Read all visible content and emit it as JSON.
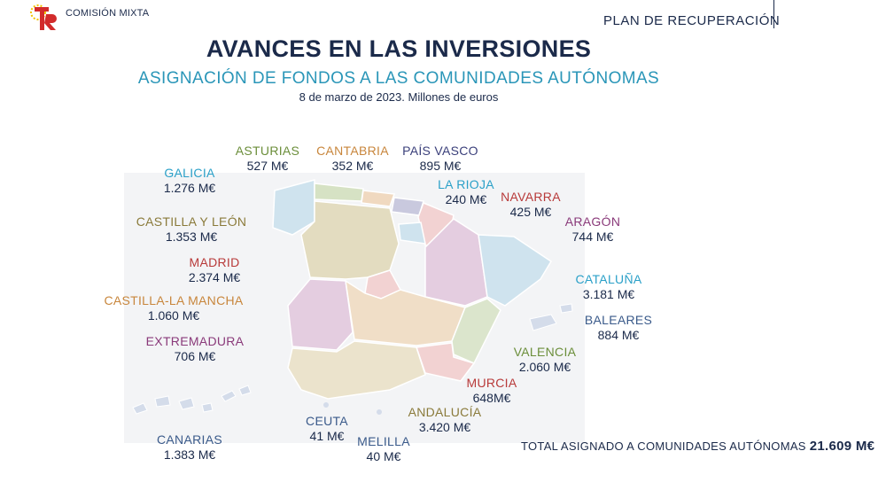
{
  "header": {
    "org": "COMISIÓN MIXTA",
    "plan": "PLAN DE RECUPERACIÓN"
  },
  "title": "AVANCES EN LAS INVERSIONES",
  "subtitle": "ASIGNACIÓN DE FONDOS A LAS COMUNIDADES AUTÓNOMAS",
  "date": "8 de marzo de 2023. Millones de euros",
  "regions": {
    "asturias": {
      "name": "ASTURIAS",
      "value": "527 M€",
      "color": "#6b8e3a"
    },
    "cantabria": {
      "name": "CANTABRIA",
      "value": "352 M€",
      "color": "#c8863c"
    },
    "pais_vasco": {
      "name": "PAÍS VASCO",
      "value": "895 M€",
      "color": "#3a3f7a"
    },
    "galicia": {
      "name": "GALICIA",
      "value": "1.276 M€",
      "color": "#2aa0c8"
    },
    "la_rioja": {
      "name": "LA RIOJA",
      "value": "240 M€",
      "color": "#2aa0c8"
    },
    "navarra": {
      "name": "NAVARRA",
      "value": "425 M€",
      "color": "#b83a3a"
    },
    "aragon": {
      "name": "ARAGÓN",
      "value": "744 M€",
      "color": "#8a3a7a"
    },
    "castilla_leon": {
      "name": "CASTILLA Y LEÓN",
      "value": "1.353 M€",
      "color": "#8a7a3a"
    },
    "madrid": {
      "name": "MADRID",
      "value": "2.374 M€",
      "color": "#b83a3a"
    },
    "cataluna": {
      "name": "CATALUÑA",
      "value": "3.181 M€",
      "color": "#2aa0c8"
    },
    "castilla_mancha": {
      "name": "CASTILLA-LA MANCHA",
      "value": "1.060 M€",
      "color": "#c8863c"
    },
    "baleares": {
      "name": "BALEARES",
      "value": "884 M€",
      "color": "#3a5a8a"
    },
    "extremadura": {
      "name": "EXTREMADURA",
      "value": "706 M€",
      "color": "#8a3a7a"
    },
    "valencia": {
      "name": "VALENCIA",
      "value": "2.060 M€",
      "color": "#6b8e3a"
    },
    "murcia": {
      "name": "MURCIA",
      "value": "648M€",
      "color": "#b83a3a"
    },
    "andalucia": {
      "name": "ANDALUCÍA",
      "value": "3.420 M€",
      "color": "#8a7a3a"
    },
    "ceuta": {
      "name": "CEUTA",
      "value": "41 M€",
      "color": "#3a5a8a"
    },
    "melilla": {
      "name": "MELILLA",
      "value": "40 M€",
      "color": "#3a5a8a"
    },
    "canarias": {
      "name": "CANARIAS",
      "value": "1.383 M€",
      "color": "#3a5a8a"
    }
  },
  "total": {
    "label": "TOTAL ASIGNADO A COMUNIDADES AUTÓNOMAS",
    "value": "21.609 M€"
  }
}
